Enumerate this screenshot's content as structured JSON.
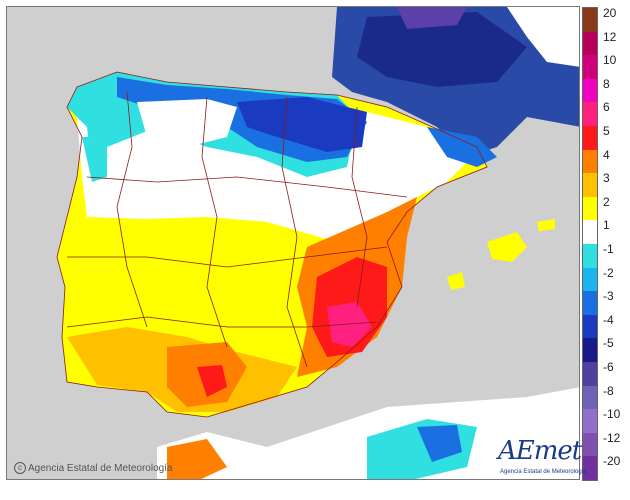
{
  "map": {
    "legend": {
      "colors": [
        "#8a3a1a",
        "#b8005a",
        "#d0007a",
        "#f000c0",
        "#ff2080",
        "#ff1a1a",
        "#ff7f00",
        "#ffc000",
        "#ffff00",
        "#ffffff",
        "#30e0e0",
        "#1ab4f0",
        "#1a70e0",
        "#1a3ac0",
        "#1a1a8a",
        "#5040a0",
        "#7060b8",
        "#9070c8",
        "#8050b0",
        "#7030a0"
      ],
      "labels": [
        "20",
        "12",
        "10",
        "8",
        "6",
        "5",
        "4",
        "3",
        "2",
        "1",
        "-1",
        "-2",
        "-3",
        "-4",
        "-5",
        "-6",
        "-8",
        "-10",
        "-12",
        "-20"
      ]
    },
    "credit": "Agencia Estatal de Meteorología",
    "logo": "AEmet",
    "logo_sub": "Agencia Estatal de Meteorología",
    "colors": {
      "sea": "#cfcfcf",
      "land": "#ffffff",
      "border": "#8b1a1a"
    }
  }
}
